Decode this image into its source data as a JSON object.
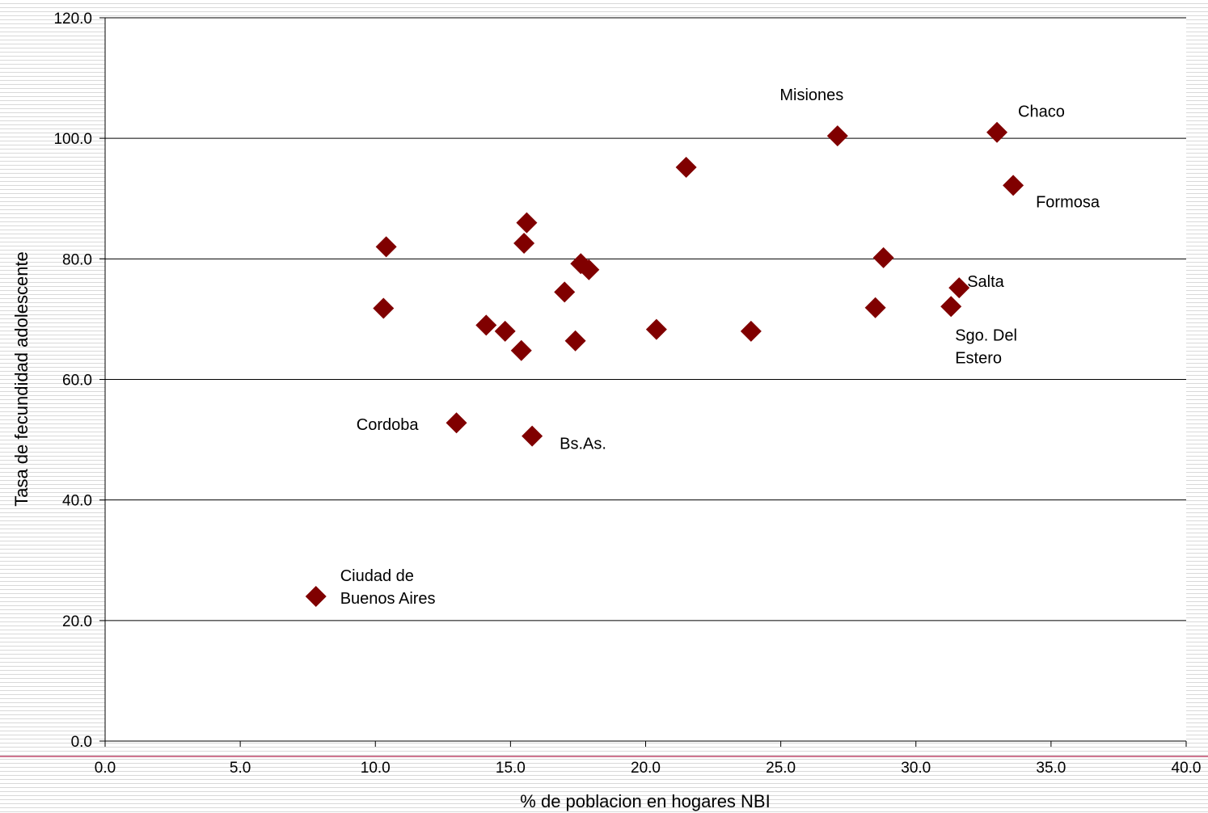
{
  "chart_data": {
    "type": "scatter",
    "title": "",
    "xlabel": "% de poblacion en hogares NBI",
    "ylabel": "Tasa de fecundidad adolescente",
    "xlim": [
      0,
      40
    ],
    "ylim": [
      0,
      120
    ],
    "x_ticks": [
      "0.0",
      "5.0",
      "10.0",
      "15.0",
      "20.0",
      "25.0",
      "30.0",
      "35.0",
      "40.0"
    ],
    "y_ticks": [
      "0.0",
      "20.0",
      "40.0",
      "60.0",
      "80.0",
      "100.0",
      "120.0"
    ],
    "grid": "horizontal",
    "legend": "none",
    "marker": "diamond",
    "marker_color": "#800000",
    "points": [
      {
        "x": 7.8,
        "y": 24.0,
        "label": [
          "Ciudad de",
          "Buenos Aires"
        ]
      },
      {
        "x": 10.3,
        "y": 71.8
      },
      {
        "x": 10.4,
        "y": 82.0
      },
      {
        "x": 13.0,
        "y": 52.8,
        "label": [
          "Cordoba"
        ]
      },
      {
        "x": 14.1,
        "y": 69.0
      },
      {
        "x": 14.8,
        "y": 68.0
      },
      {
        "x": 15.4,
        "y": 64.8
      },
      {
        "x": 15.5,
        "y": 82.6
      },
      {
        "x": 15.6,
        "y": 86.0
      },
      {
        "x": 15.8,
        "y": 50.6,
        "label": [
          "Bs.As."
        ]
      },
      {
        "x": 17.0,
        "y": 74.5
      },
      {
        "x": 17.4,
        "y": 66.4
      },
      {
        "x": 17.6,
        "y": 79.2
      },
      {
        "x": 17.9,
        "y": 78.2
      },
      {
        "x": 20.4,
        "y": 68.3
      },
      {
        "x": 21.5,
        "y": 95.2
      },
      {
        "x": 23.9,
        "y": 68.0
      },
      {
        "x": 27.1,
        "y": 100.4,
        "label": [
          "Misiones"
        ]
      },
      {
        "x": 28.5,
        "y": 71.9
      },
      {
        "x": 28.8,
        "y": 80.2
      },
      {
        "x": 31.3,
        "y": 72.1,
        "label": [
          "Sgo. Del",
          "Estero"
        ]
      },
      {
        "x": 31.6,
        "y": 75.2,
        "label": [
          "Salta"
        ]
      },
      {
        "x": 33.0,
        "y": 101.0,
        "label": [
          "Chaco"
        ]
      },
      {
        "x": 33.6,
        "y": 92.2,
        "label": [
          "Formosa"
        ]
      }
    ]
  }
}
